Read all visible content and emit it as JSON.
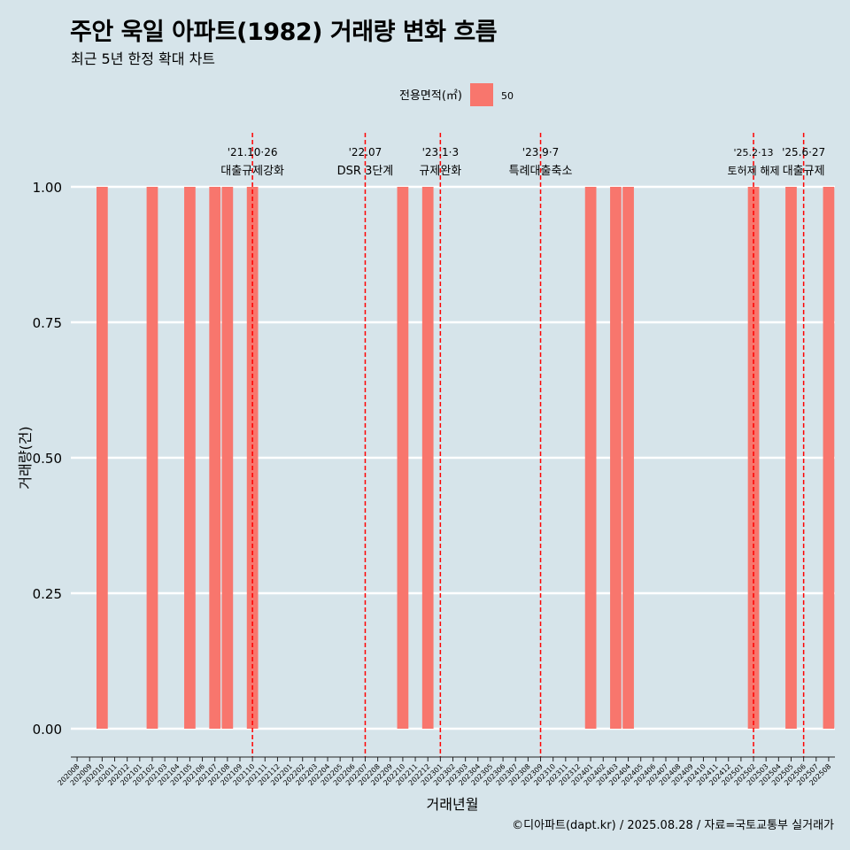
{
  "title": "주안 욱일 아파트(1982) 거래량 변화 흐름",
  "subtitle": "최근 5년 한정 확대 차트",
  "caption": "©디아파트(dapt.kr) / 2025.08.28 / 자료=국토교통부 실거래가",
  "colors": {
    "background": "#d6e4ea",
    "bar": "#f8766d",
    "event_line": "#ff0000",
    "grid": "#ffffff"
  },
  "chart_data": {
    "type": "bar",
    "xlabel": "거래년월",
    "ylabel": "거래량(건)",
    "ylim": [
      0,
      1
    ],
    "yticks": [
      "0.00",
      "0.25",
      "0.50",
      "0.75",
      "1.00"
    ],
    "legend": {
      "title": "전용면적(㎡)",
      "items": [
        "50"
      ],
      "position": "top"
    },
    "categories": [
      "202008",
      "202009",
      "202010",
      "202011",
      "202012",
      "202101",
      "202102",
      "202103",
      "202104",
      "202105",
      "202106",
      "202107",
      "202108",
      "202109",
      "202110",
      "202111",
      "202112",
      "202201",
      "202202",
      "202203",
      "202204",
      "202205",
      "202206",
      "202207",
      "202208",
      "202209",
      "202210",
      "202211",
      "202212",
      "202301",
      "202302",
      "202303",
      "202304",
      "202305",
      "202306",
      "202307",
      "202308",
      "202309",
      "202310",
      "202311",
      "202312",
      "202401",
      "202402",
      "202403",
      "202404",
      "202405",
      "202406",
      "202407",
      "202408",
      "202409",
      "202410",
      "202411",
      "202412",
      "202501",
      "202502",
      "202503",
      "202504",
      "202505",
      "202506",
      "202507",
      "202508"
    ],
    "series": [
      {
        "name": "50",
        "values": [
          0,
          0,
          1,
          0,
          0,
          0,
          1,
          0,
          0,
          1,
          0,
          1,
          1,
          0,
          1,
          0,
          0,
          0,
          0,
          0,
          0,
          0,
          0,
          0,
          0,
          0,
          1,
          0,
          1,
          0,
          0,
          0,
          0,
          0,
          0,
          0,
          0,
          0,
          0,
          0,
          0,
          1,
          0,
          1,
          1,
          0,
          0,
          0,
          0,
          0,
          0,
          0,
          0,
          0,
          1,
          0,
          0,
          1,
          0,
          0,
          1
        ]
      }
    ],
    "events": [
      {
        "month": "202110",
        "date": "'21.10·26",
        "label": "대출규제강화"
      },
      {
        "month": "202207",
        "date": "'22.07",
        "label": "DSR 3단계"
      },
      {
        "month": "202301",
        "date": "'23.1·3",
        "label": "규제완화"
      },
      {
        "month": "202309",
        "date": "'23.9·7",
        "label": "특례대출축소"
      },
      {
        "month": "202502",
        "date": "'25.2·13",
        "label": "토허제 해제"
      },
      {
        "month": "202506",
        "date": "'25.6·27",
        "label": "대출규제"
      }
    ]
  }
}
